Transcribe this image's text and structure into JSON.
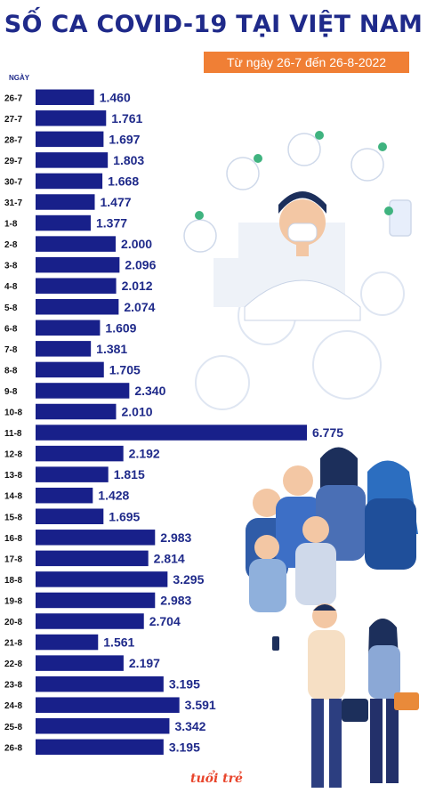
{
  "title": "SỐ CA COVID-19 TẠI VIỆT NAM",
  "subtitle": "Từ ngày 26-7 đến 26-8-2022",
  "logo": "tuổi trẻ",
  "colors": {
    "bar": "#18208a",
    "title": "#1f2a8a",
    "badge": "#f07f35"
  },
  "chart_data": {
    "type": "bar",
    "orientation": "horizontal",
    "ylabel": "NGÀY",
    "categories": [
      "26-7",
      "27-7",
      "28-7",
      "29-7",
      "30-7",
      "31-7",
      "1-8",
      "2-8",
      "3-8",
      "4-8",
      "5-8",
      "6-8",
      "7-8",
      "8-8",
      "9-8",
      "10-8",
      "11-8",
      "12-8",
      "13-8",
      "14-8",
      "15-8",
      "16-8",
      "17-8",
      "18-8",
      "19-8",
      "20-8",
      "21-8",
      "22-8",
      "23-8",
      "24-8",
      "25-8",
      "26-8"
    ],
    "values": [
      1460,
      1761,
      1697,
      1803,
      1668,
      1477,
      1377,
      2000,
      2096,
      2012,
      2074,
      1609,
      1381,
      1705,
      2340,
      2010,
      6775,
      2192,
      1815,
      1428,
      1695,
      2983,
      2814,
      3295,
      2983,
      2704,
      1561,
      2197,
      3195,
      3591,
      3342,
      3195
    ],
    "value_labels": [
      "1.460",
      "1.761",
      "1.697",
      "1.803",
      "1.668",
      "1.477",
      "1.377",
      "2.000",
      "2.096",
      "2.012",
      "2.074",
      "1.609",
      "1.381",
      "1.705",
      "2.340",
      "2.010",
      "6.775",
      "2.192",
      "1.815",
      "1.428",
      "1.695",
      "2.983",
      "2.814",
      "3.295",
      "2.983",
      "2.704",
      "1.561",
      "2.197",
      "3.195",
      "3.591",
      "3.342",
      "3.195"
    ]
  }
}
